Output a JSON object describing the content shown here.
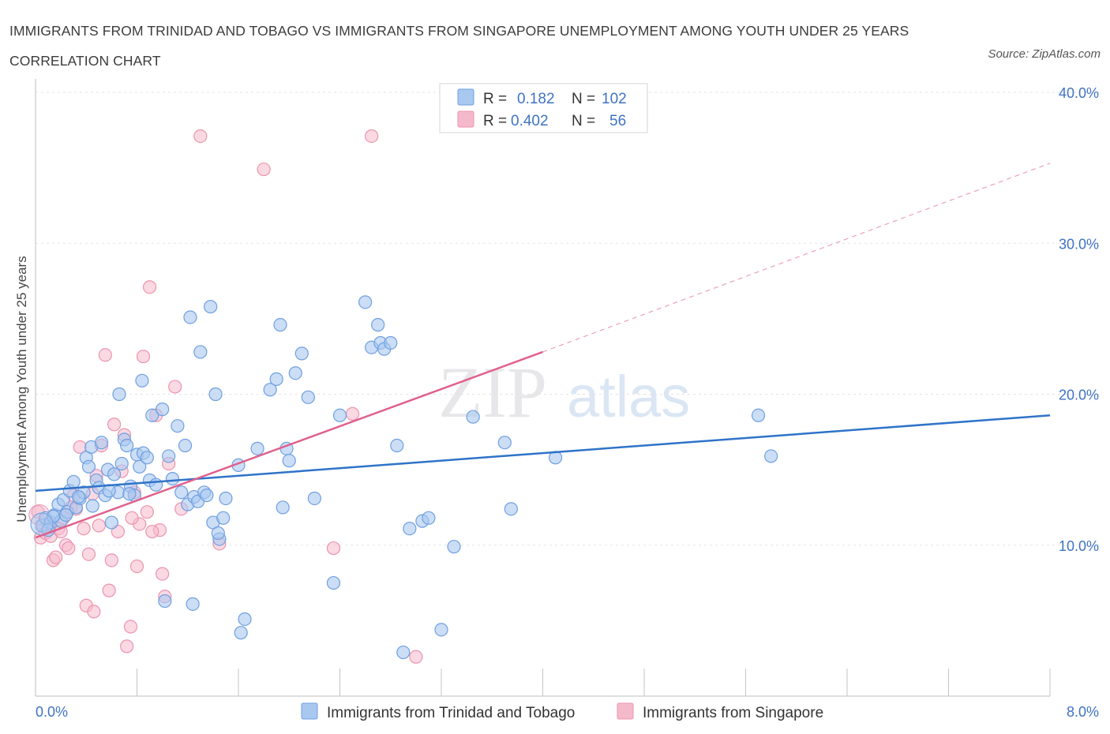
{
  "header": {
    "title": "IMMIGRANTS FROM TRINIDAD AND TOBAGO VS IMMIGRANTS FROM SINGAPORE UNEMPLOYMENT AMONG YOUTH UNDER 25 YEARS CORRELATION CHART",
    "source": "Source: ZipAtlas.com"
  },
  "watermark": {
    "zip": "ZIP",
    "atlas": "atlas"
  },
  "legend": {
    "r_label": "R =",
    "n_label": "N =",
    "rows": [
      {
        "r": "0.182",
        "n": "102"
      },
      {
        "r": "0.402",
        "n": "56"
      }
    ]
  },
  "colors": {
    "series1_fill": "#a9c8f0",
    "series1_stroke": "#6f9fe0",
    "series1_line": "#2f73c9",
    "series2_fill": "#f5b9cc",
    "series2_stroke": "#ec93ae",
    "series2_line": "#e0608c",
    "tick_color": "#3f72c4"
  },
  "chart_data": {
    "type": "scatter",
    "title": "IMMIGRANTS FROM TRINIDAD AND TOBAGO VS IMMIGRANTS FROM SINGAPORE UNEMPLOYMENT AMONG YOUTH UNDER 25 YEARS CORRELATION CHART",
    "xlabel": "",
    "ylabel": "Unemployment Among Youth under 25 years",
    "xlim": [
      0,
      8
    ],
    "ylim": [
      0,
      40
    ],
    "x_tick_labels": [
      "0.0%",
      "8.0%"
    ],
    "y_ticks": [
      10,
      20,
      30,
      40
    ],
    "y_tick_labels": [
      "10.0%",
      "20.0%",
      "30.0%",
      "40.0%"
    ],
    "grid": true,
    "legend_position": "top-center",
    "series": [
      {
        "name": "Immigrants from Trinidad and Tobago",
        "R": 0.182,
        "N": 102,
        "trend": {
          "x0": 0.0,
          "y0": 13.6,
          "x1": 8.0,
          "y1": 18.6
        },
        "points": [
          [
            0.05,
            11.3
          ],
          [
            0.08,
            11.8
          ],
          [
            0.12,
            11.5
          ],
          [
            0.15,
            12.0
          ],
          [
            0.18,
            12.7
          ],
          [
            0.2,
            11.6
          ],
          [
            0.22,
            13.0
          ],
          [
            0.25,
            12.2
          ],
          [
            0.27,
            13.6
          ],
          [
            0.3,
            14.2
          ],
          [
            0.32,
            12.5
          ],
          [
            0.35,
            13.1
          ],
          [
            0.38,
            13.5
          ],
          [
            0.4,
            15.8
          ],
          [
            0.42,
            15.2
          ],
          [
            0.45,
            12.6
          ],
          [
            0.48,
            14.3
          ],
          [
            0.5,
            13.8
          ],
          [
            0.55,
            13.3
          ],
          [
            0.57,
            15.0
          ],
          [
            0.6,
            11.5
          ],
          [
            0.62,
            14.7
          ],
          [
            0.65,
            13.5
          ],
          [
            0.68,
            15.4
          ],
          [
            0.7,
            17.0
          ],
          [
            0.72,
            16.6
          ],
          [
            0.75,
            13.9
          ],
          [
            0.78,
            13.3
          ],
          [
            0.8,
            16.0
          ],
          [
            0.82,
            15.2
          ],
          [
            0.85,
            16.1
          ],
          [
            0.88,
            15.8
          ],
          [
            0.9,
            14.3
          ],
          [
            0.92,
            18.6
          ],
          [
            0.95,
            14.0
          ],
          [
            1.0,
            19.0
          ],
          [
            1.05,
            15.9
          ],
          [
            1.08,
            14.4
          ],
          [
            1.12,
            17.9
          ],
          [
            1.15,
            13.5
          ],
          [
            1.18,
            16.6
          ],
          [
            1.2,
            12.7
          ],
          [
            1.22,
            25.1
          ],
          [
            1.25,
            13.2
          ],
          [
            1.28,
            12.9
          ],
          [
            1.3,
            22.8
          ],
          [
            1.33,
            13.5
          ],
          [
            1.35,
            13.3
          ],
          [
            1.38,
            25.8
          ],
          [
            1.4,
            11.5
          ],
          [
            1.42,
            20.0
          ],
          [
            1.45,
            10.4
          ],
          [
            1.48,
            11.8
          ],
          [
            1.5,
            13.1
          ],
          [
            1.6,
            15.3
          ],
          [
            1.62,
            4.2
          ],
          [
            1.65,
            5.1
          ],
          [
            1.75,
            16.4
          ],
          [
            1.85,
            20.3
          ],
          [
            1.9,
            21.0
          ],
          [
            1.93,
            24.6
          ],
          [
            1.95,
            12.5
          ],
          [
            1.98,
            16.4
          ],
          [
            2.0,
            15.6
          ],
          [
            2.05,
            21.4
          ],
          [
            2.1,
            22.7
          ],
          [
            2.15,
            19.8
          ],
          [
            2.2,
            13.1
          ],
          [
            2.35,
            7.5
          ],
          [
            2.4,
            18.6
          ],
          [
            2.6,
            26.1
          ],
          [
            2.65,
            23.1
          ],
          [
            2.7,
            24.6
          ],
          [
            2.72,
            23.4
          ],
          [
            2.75,
            23.0
          ],
          [
            2.8,
            23.4
          ],
          [
            2.85,
            16.6
          ],
          [
            2.9,
            2.9
          ],
          [
            2.95,
            11.1
          ],
          [
            3.05,
            11.6
          ],
          [
            3.1,
            11.8
          ],
          [
            3.2,
            4.4
          ],
          [
            3.3,
            9.9
          ],
          [
            3.45,
            18.5
          ],
          [
            3.7,
            16.8
          ],
          [
            3.75,
            12.4
          ],
          [
            4.1,
            15.8
          ],
          [
            5.7,
            18.6
          ],
          [
            5.8,
            15.9
          ],
          [
            0.1,
            11.0
          ],
          [
            0.14,
            11.9
          ],
          [
            0.24,
            12.0
          ],
          [
            0.34,
            13.2
          ],
          [
            0.44,
            16.5
          ],
          [
            0.52,
            16.8
          ],
          [
            0.58,
            13.6
          ],
          [
            0.66,
            20.0
          ],
          [
            0.74,
            13.4
          ],
          [
            0.84,
            20.9
          ],
          [
            1.02,
            6.3
          ],
          [
            1.24,
            6.1
          ],
          [
            1.44,
            10.8
          ]
        ]
      },
      {
        "name": "Immigrants from Singapore",
        "R": 0.402,
        "N": 56,
        "trend": {
          "x0": 0.0,
          "y0": 10.5,
          "x1": 4.0,
          "y1": 22.8
        },
        "trend_dashed_to": {
          "x": 8.0,
          "y": 35.3
        },
        "points": [
          [
            0.02,
            12.2
          ],
          [
            0.04,
            10.5
          ],
          [
            0.06,
            11.3
          ],
          [
            0.08,
            10.8
          ],
          [
            0.1,
            11.5
          ],
          [
            0.12,
            10.6
          ],
          [
            0.14,
            9.0
          ],
          [
            0.16,
            9.2
          ],
          [
            0.18,
            11.1
          ],
          [
            0.2,
            10.9
          ],
          [
            0.22,
            11.8
          ],
          [
            0.24,
            10.0
          ],
          [
            0.26,
            9.8
          ],
          [
            0.28,
            12.5
          ],
          [
            0.3,
            13.3
          ],
          [
            0.32,
            12.4
          ],
          [
            0.35,
            16.5
          ],
          [
            0.38,
            11.1
          ],
          [
            0.4,
            6.0
          ],
          [
            0.42,
            9.4
          ],
          [
            0.45,
            13.4
          ],
          [
            0.48,
            14.6
          ],
          [
            0.5,
            11.3
          ],
          [
            0.52,
            16.6
          ],
          [
            0.55,
            22.6
          ],
          [
            0.58,
            7.0
          ],
          [
            0.6,
            9.0
          ],
          [
            0.62,
            18.0
          ],
          [
            0.65,
            10.9
          ],
          [
            0.68,
            14.9
          ],
          [
            0.7,
            17.3
          ],
          [
            0.72,
            3.3
          ],
          [
            0.75,
            4.6
          ],
          [
            0.78,
            13.5
          ],
          [
            0.8,
            8.6
          ],
          [
            0.82,
            11.4
          ],
          [
            0.85,
            22.5
          ],
          [
            0.88,
            12.2
          ],
          [
            0.9,
            27.1
          ],
          [
            0.95,
            18.6
          ],
          [
            0.98,
            11.0
          ],
          [
            1.0,
            8.1
          ],
          [
            1.05,
            15.4
          ],
          [
            1.1,
            20.5
          ],
          [
            1.15,
            12.4
          ],
          [
            1.3,
            37.1
          ],
          [
            1.45,
            10.1
          ],
          [
            1.8,
            34.9
          ],
          [
            2.35,
            9.8
          ],
          [
            2.5,
            18.7
          ],
          [
            2.65,
            37.1
          ],
          [
            3.0,
            2.6
          ],
          [
            0.76,
            11.8
          ],
          [
            0.92,
            10.9
          ],
          [
            1.02,
            6.6
          ],
          [
            0.46,
            5.6
          ]
        ]
      }
    ]
  },
  "bottom_legend": [
    "Immigrants from Trinidad and Tobago",
    "Immigrants from Singapore"
  ]
}
